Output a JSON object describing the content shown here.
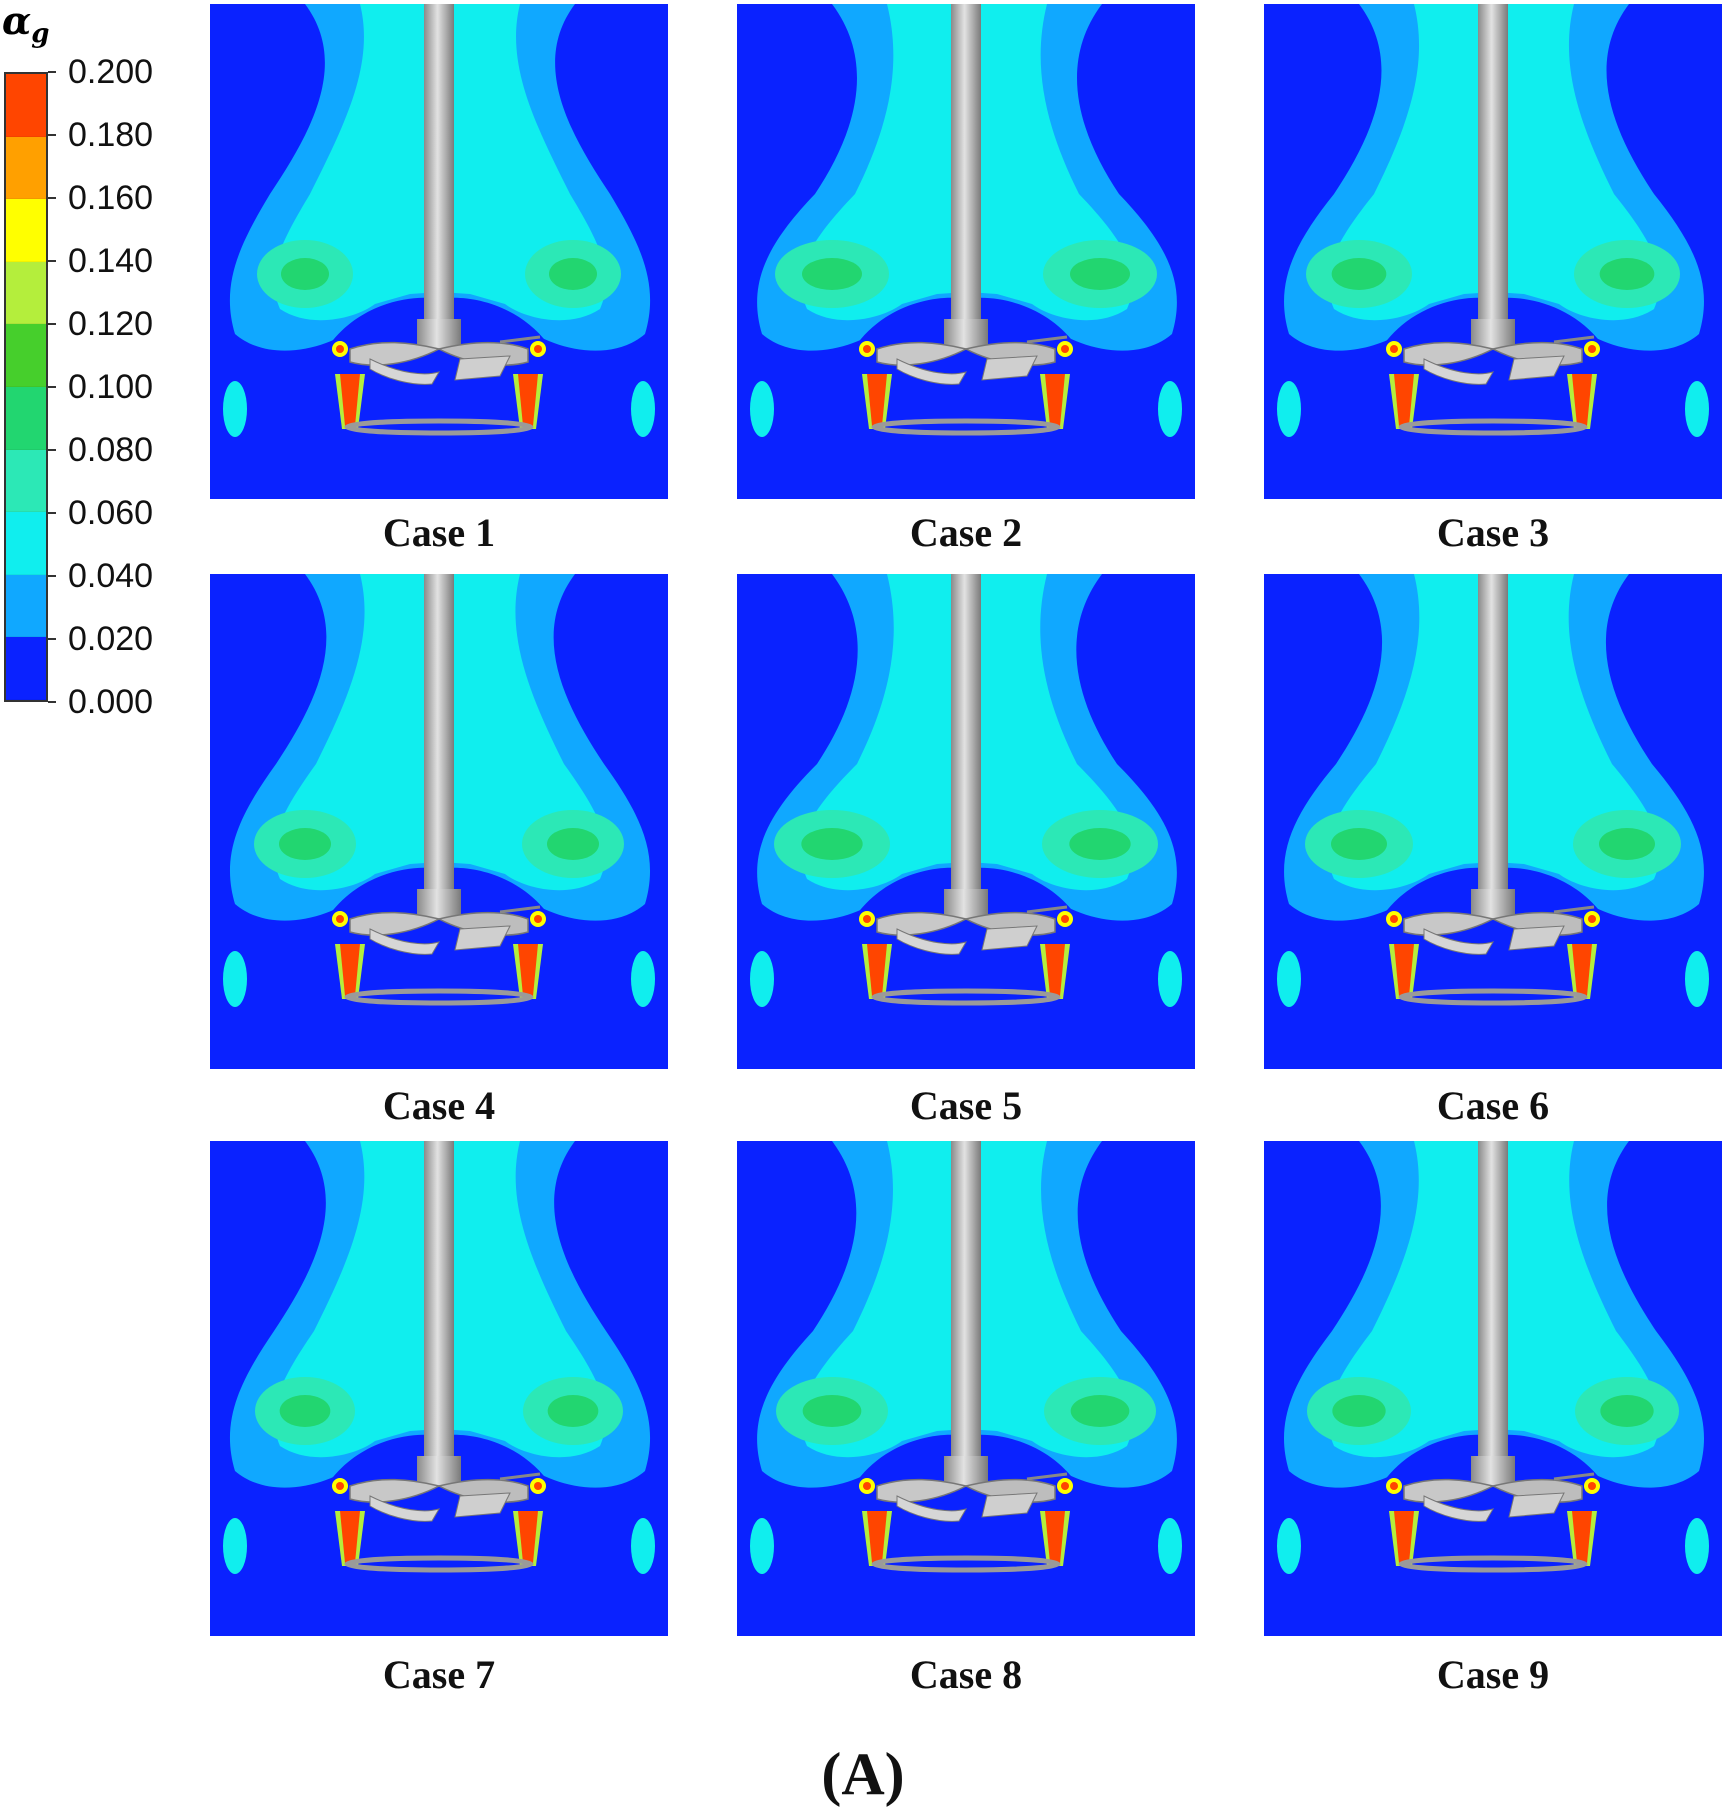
{
  "legend": {
    "symbol": "α",
    "subscript": "g",
    "ticks": [
      "0.200",
      "0.180",
      "0.160",
      "0.140",
      "0.120",
      "0.100",
      "0.080",
      "0.060",
      "0.040",
      "0.020",
      "0.000"
    ],
    "colors_top_to_bottom": [
      "#ff4500",
      "#ffa000",
      "#ffff00",
      "#b4ee3c",
      "#46cf2c",
      "#22d670",
      "#2ce8b6",
      "#10eeee",
      "#10a8ff",
      "#0a22ff"
    ]
  },
  "panels": [
    {
      "label": "Case 1"
    },
    {
      "label": "Case 2"
    },
    {
      "label": "Case 3"
    },
    {
      "label": "Case 4"
    },
    {
      "label": "Case 5"
    },
    {
      "label": "Case 6"
    },
    {
      "label": "Case 7"
    },
    {
      "label": "Case 8"
    },
    {
      "label": "Case 9"
    }
  ],
  "figure_label": "(A)"
}
